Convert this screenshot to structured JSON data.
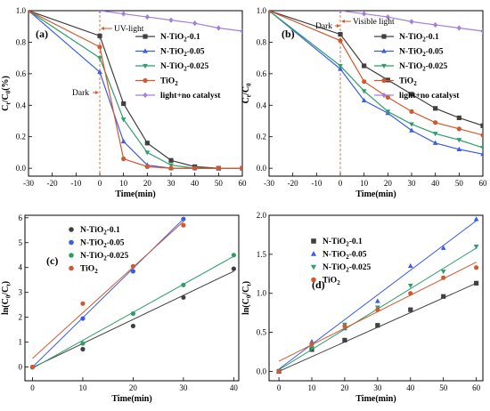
{
  "chart_data": [
    {
      "type": "line",
      "panel_label": "(a)",
      "xlabel": "Time(min)",
      "ylabel": "C_t/C_0(%)",
      "xlim": [
        -30,
        60
      ],
      "ylim": [
        -0.05,
        1.0
      ],
      "xticks": [
        "-30",
        "-20",
        "-10",
        "0",
        "10",
        "20",
        "30",
        "40",
        "50",
        "60"
      ],
      "yticks": [
        "0.0",
        "0.2",
        "0.4",
        "0.6",
        "0.8",
        "1.0"
      ],
      "annotations": [
        "UV-light",
        "Dark"
      ],
      "legend_position": "top-right",
      "series": [
        {
          "name": "N-TiO2-0.1",
          "color": "#404040",
          "marker": "square",
          "x": [
            -30,
            0,
            10,
            20,
            30,
            40,
            50,
            60
          ],
          "y": [
            1.0,
            0.84,
            0.41,
            0.16,
            0.05,
            0.01,
            0.0,
            0.0
          ]
        },
        {
          "name": "N-TiO2-0.05",
          "color": "#3a5ce8",
          "marker": "triangle",
          "x": [
            -30,
            0,
            10,
            20,
            30,
            40,
            50,
            60
          ],
          "y": [
            1.0,
            0.61,
            0.17,
            0.02,
            0.0,
            0.0,
            0.0,
            0.0
          ]
        },
        {
          "name": "N-TiO2-0.025",
          "color": "#2e9e6b",
          "marker": "tri-down",
          "x": [
            -30,
            0,
            10,
            20,
            30,
            40,
            50,
            60
          ],
          "y": [
            1.0,
            0.7,
            0.31,
            0.1,
            0.02,
            0.0,
            0.0,
            0.0
          ]
        },
        {
          "name": "TiO2",
          "color": "#d2582e",
          "marker": "circle",
          "x": [
            -30,
            0,
            10,
            20,
            30,
            40,
            50,
            60
          ],
          "y": [
            1.0,
            0.77,
            0.06,
            0.01,
            0.0,
            0.0,
            0.0,
            0.0
          ]
        },
        {
          "name": "light+no catalyst",
          "color": "#a27fd8",
          "marker": "diamond",
          "x": [
            0,
            10,
            20,
            30,
            40,
            50,
            60
          ],
          "y": [
            1.0,
            0.98,
            0.96,
            0.94,
            0.92,
            0.89,
            0.87
          ]
        }
      ]
    },
    {
      "type": "line",
      "panel_label": "(b)",
      "xlabel": "Time(min)",
      "ylabel": "C_t/C_0",
      "xlim": [
        -30,
        60
      ],
      "ylim": [
        -0.05,
        1.0
      ],
      "xticks": [
        "-30",
        "-20",
        "-10",
        "0",
        "10",
        "20",
        "30",
        "40",
        "50",
        "60"
      ],
      "yticks": [
        "0.0",
        "0.2",
        "0.4",
        "0.6",
        "0.8",
        "1.0"
      ],
      "annotations": [
        "Dark",
        "Visible light"
      ],
      "legend_position": "top-right",
      "series": [
        {
          "name": "N-TiO2-0.1",
          "color": "#404040",
          "marker": "square",
          "x": [
            -30,
            0,
            10,
            20,
            30,
            40,
            50,
            60
          ],
          "y": [
            1.0,
            0.85,
            0.65,
            0.56,
            0.47,
            0.38,
            0.32,
            0.27
          ]
        },
        {
          "name": "N-TiO2-0.05",
          "color": "#3a5ce8",
          "marker": "triangle",
          "x": [
            -30,
            0,
            10,
            20,
            30,
            40,
            50,
            60
          ],
          "y": [
            1.0,
            0.63,
            0.43,
            0.35,
            0.24,
            0.16,
            0.12,
            0.09
          ]
        },
        {
          "name": "N-TiO2-0.025",
          "color": "#2e9e6b",
          "marker": "tri-down",
          "x": [
            -30,
            0,
            10,
            20,
            30,
            40,
            50,
            60
          ],
          "y": [
            1.0,
            0.65,
            0.49,
            0.36,
            0.28,
            0.22,
            0.18,
            0.13
          ]
        },
        {
          "name": "TiO2",
          "color": "#d2582e",
          "marker": "circle",
          "x": [
            -30,
            0,
            10,
            20,
            30,
            40,
            50,
            60
          ],
          "y": [
            1.0,
            0.81,
            0.55,
            0.45,
            0.36,
            0.29,
            0.25,
            0.21
          ]
        },
        {
          "name": "light+no catalyst",
          "color": "#a27fd8",
          "marker": "diamond",
          "x": [
            0,
            10,
            20,
            30,
            40,
            50,
            60
          ],
          "y": [
            1.0,
            0.98,
            0.96,
            0.93,
            0.91,
            0.89,
            0.87
          ]
        }
      ]
    },
    {
      "type": "scatter",
      "panel_label": "(c)",
      "xlabel": "Time(min)",
      "ylabel": "ln(C_0/C_t)",
      "xlim": [
        -1.5,
        41
      ],
      "ylim": [
        -0.55,
        6.1
      ],
      "xticks": [
        "0",
        "10",
        "20",
        "30",
        "40"
      ],
      "yticks": [
        "0",
        "1",
        "2",
        "3",
        "4",
        "5",
        "6"
      ],
      "legend_position": "top-left",
      "series": [
        {
          "name": "N-TiO2-0.1",
          "color": "#404040",
          "marker": "circle",
          "x": [
            0,
            10,
            20,
            30,
            40
          ],
          "y": [
            0.0,
            0.72,
            1.65,
            2.8,
            3.95
          ],
          "fit": [
            [
              0,
              -0.02
            ],
            [
              40,
              3.85
            ]
          ]
        },
        {
          "name": "N-TiO2-0.05",
          "color": "#3a5ce8",
          "marker": "circle",
          "x": [
            0,
            10,
            20,
            30
          ],
          "y": [
            0.0,
            1.95,
            3.85,
            5.95
          ],
          "fit": [
            [
              0,
              0.0
            ],
            [
              30,
              5.95
            ]
          ]
        },
        {
          "name": "N-TiO2-0.025",
          "color": "#2e9e6b",
          "marker": "circle",
          "x": [
            0,
            10,
            20,
            30,
            40
          ],
          "y": [
            0.0,
            0.95,
            2.15,
            3.3,
            4.5
          ],
          "fit": [
            [
              0,
              -0.05
            ],
            [
              40,
              4.45
            ]
          ]
        },
        {
          "name": "TiO2",
          "color": "#d2582e",
          "marker": "circle",
          "x": [
            0,
            10,
            20,
            30
          ],
          "y": [
            0.0,
            2.55,
            4.05,
            5.7
          ],
          "fit": [
            [
              0,
              0.35
            ],
            [
              30,
              5.85
            ]
          ]
        }
      ]
    },
    {
      "type": "scatter",
      "panel_label": "(d)",
      "xlabel": "Time(min)",
      "ylabel": "ln(C_0/C_t)",
      "xlim": [
        -3,
        62
      ],
      "ylim": [
        -0.12,
        2.0
      ],
      "xticks": [
        "0",
        "10",
        "20",
        "30",
        "40",
        "50",
        "60"
      ],
      "yticks": [
        "0.0",
        "0.5",
        "1.0",
        "1.5",
        "2.0"
      ],
      "legend_position": "top-left",
      "series": [
        {
          "name": "N-TiO2-0.1",
          "color": "#404040",
          "marker": "square",
          "x": [
            0,
            10,
            20,
            30,
            40,
            50,
            60
          ],
          "y": [
            0.0,
            0.28,
            0.4,
            0.59,
            0.79,
            0.96,
            1.13
          ],
          "fit": [
            [
              0,
              0.0
            ],
            [
              60,
              1.13
            ]
          ]
        },
        {
          "name": "N-TiO2-0.05",
          "color": "#3a5ce8",
          "marker": "triangle",
          "x": [
            0,
            10,
            20,
            30,
            40,
            50,
            60
          ],
          "y": [
            0.0,
            0.38,
            0.55,
            0.9,
            1.35,
            1.58,
            1.95
          ],
          "fit": [
            [
              0,
              0.03
            ],
            [
              60,
              1.93
            ]
          ]
        },
        {
          "name": "N-TiO2-0.025",
          "color": "#2e9e6b",
          "marker": "tri-down",
          "x": [
            0,
            10,
            20,
            30,
            40,
            50,
            60
          ],
          "y": [
            0.0,
            0.3,
            0.6,
            0.82,
            1.1,
            1.28,
            1.6
          ],
          "fit": [
            [
              0,
              0.02
            ],
            [
              60,
              1.58
            ]
          ]
        },
        {
          "name": "TiO2",
          "color": "#d2582e",
          "marker": "circle",
          "x": [
            0,
            10,
            20,
            30,
            40,
            50,
            60
          ],
          "y": [
            0.0,
            0.35,
            0.58,
            0.79,
            1.0,
            1.2,
            1.33
          ],
          "fit": [
            [
              0,
              0.13
            ],
            [
              60,
              1.4
            ]
          ]
        }
      ]
    }
  ]
}
